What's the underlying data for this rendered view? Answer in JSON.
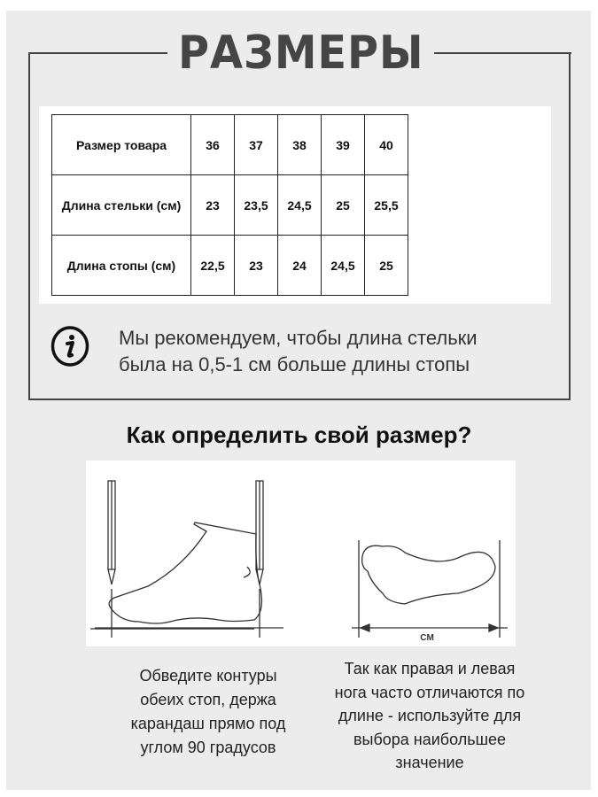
{
  "title": "РАЗМЕРЫ",
  "size_table": {
    "rows": [
      {
        "label": "Размер товара",
        "values": [
          "36",
          "37",
          "38",
          "39",
          "40"
        ]
      },
      {
        "label": "Длина стельки (см)",
        "values": [
          "23",
          "23,5",
          "24,5",
          "25",
          "25,5"
        ]
      },
      {
        "label": "Длина стопы (см)",
        "values": [
          "22,5",
          "23",
          "24",
          "24,5",
          "25"
        ]
      }
    ]
  },
  "recommendation": {
    "icon": "info-icon",
    "line1": "Мы рекомендуем, чтобы длина стельки",
    "line2": "была на 0,5-1 см больше длины стопы"
  },
  "how_to": {
    "heading": "Как определить свой размер?",
    "unit_label": "CM",
    "left_caption": [
      "Обведите контуры",
      "обеих стоп, держа",
      "карандаш прямо под",
      "углом 90 градусов"
    ],
    "right_caption": [
      "Так как правая и левая",
      "нога часто отличаются по",
      "длине - используйте для",
      "выбора наибольшее",
      "значение"
    ]
  }
}
